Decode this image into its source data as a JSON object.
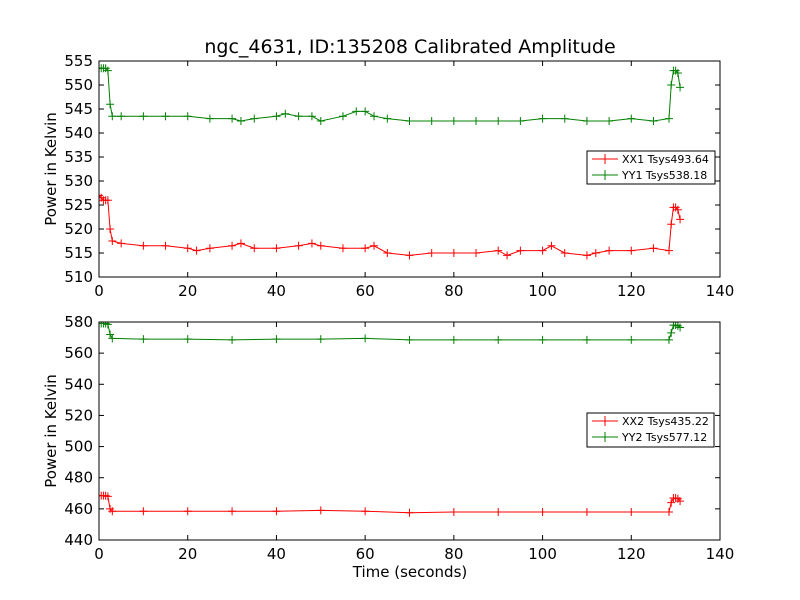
{
  "chart_data": [
    {
      "type": "line",
      "title": "ngc_4631, ID:135208 Calibrated Amplitude",
      "xlabel": "",
      "ylabel": "Power in Kelvin",
      "xlim": [
        0,
        140
      ],
      "ylim": [
        510,
        555
      ],
      "xticks": [
        0,
        20,
        40,
        60,
        80,
        100,
        120,
        140
      ],
      "yticks": [
        510,
        515,
        520,
        525,
        530,
        535,
        540,
        545,
        550,
        555
      ],
      "legend": "center-right",
      "grid": false,
      "series": [
        {
          "name": "XX1 Tsys493.64",
          "color": "#ff0000",
          "x": [
            0,
            0.5,
            1,
            1.5,
            2,
            2.5,
            3,
            5,
            10,
            15,
            20,
            22,
            25,
            30,
            32,
            35,
            40,
            45,
            48,
            50,
            55,
            60,
            62,
            65,
            70,
            75,
            80,
            85,
            90,
            92,
            95,
            100,
            102,
            105,
            110,
            112,
            115,
            120,
            125,
            128.5,
            129,
            129.5,
            130,
            130.5,
            131
          ],
          "y": [
            527,
            526.5,
            526,
            526,
            526,
            520,
            517.5,
            517,
            516.5,
            516.5,
            516,
            515.5,
            516,
            516.5,
            517,
            516,
            516,
            516.5,
            517,
            516.5,
            516,
            516,
            516.5,
            515,
            514.5,
            515,
            515,
            515,
            515.5,
            514.5,
            515.5,
            515.5,
            516.5,
            515,
            514.5,
            515,
            515.5,
            515.5,
            516,
            515.5,
            521,
            524.5,
            524.5,
            524,
            522
          ]
        },
        {
          "name": "YY1 Tsys538.18",
          "color": "#008000",
          "x": [
            0,
            0.5,
            1,
            1.5,
            2,
            2.5,
            3,
            5,
            10,
            15,
            20,
            25,
            30,
            32,
            35,
            40,
            42,
            45,
            48,
            50,
            55,
            58,
            60,
            62,
            65,
            70,
            75,
            80,
            85,
            90,
            95,
            100,
            105,
            110,
            115,
            120,
            125,
            128.5,
            129,
            129.5,
            130,
            130.5,
            131
          ],
          "y": [
            553.5,
            553.5,
            553.5,
            553.5,
            553,
            546,
            543.5,
            543.5,
            543.5,
            543.5,
            543.5,
            543,
            543,
            542.5,
            543,
            543.5,
            544,
            543.5,
            543.5,
            542.5,
            543.5,
            544.5,
            544.5,
            543.5,
            543,
            542.5,
            542.5,
            542.5,
            542.5,
            542.5,
            542.5,
            543,
            543,
            542.5,
            542.5,
            543,
            542.5,
            543,
            550,
            553,
            553,
            552.5,
            549.5
          ]
        }
      ]
    },
    {
      "type": "line",
      "title": "",
      "xlabel": "Time (seconds)",
      "ylabel": "Power in Kelvin",
      "xlim": [
        0,
        140
      ],
      "ylim": [
        440,
        580
      ],
      "xticks": [
        0,
        20,
        40,
        60,
        80,
        100,
        120,
        140
      ],
      "yticks": [
        440,
        460,
        480,
        500,
        520,
        540,
        560,
        580
      ],
      "legend": "center-right",
      "grid": false,
      "series": [
        {
          "name": "XX2 Tsys435.22",
          "color": "#ff0000",
          "x": [
            0,
            0.5,
            1,
            1.5,
            2,
            2.5,
            3,
            10,
            20,
            30,
            40,
            50,
            60,
            70,
            80,
            90,
            100,
            110,
            120,
            128.5,
            129,
            129.5,
            130,
            130.5,
            131
          ],
          "y": [
            468.5,
            468.5,
            468.5,
            468.5,
            468,
            460,
            458.5,
            458.5,
            458.5,
            458.5,
            458.5,
            459,
            458.5,
            457.5,
            458,
            458,
            458,
            458,
            458,
            458,
            464,
            467,
            467,
            466.5,
            465
          ]
        },
        {
          "name": "YY2 Tsys577.12",
          "color": "#008000",
          "x": [
            0,
            0.5,
            1,
            1.5,
            2,
            2.5,
            3,
            10,
            20,
            30,
            40,
            50,
            60,
            70,
            80,
            90,
            100,
            110,
            120,
            128.5,
            129,
            129.5,
            130,
            130.5,
            131
          ],
          "y": [
            579,
            579,
            579,
            579,
            578.5,
            572,
            569.5,
            569,
            569,
            568.5,
            569,
            569,
            569.5,
            568.5,
            568.5,
            568.5,
            568.5,
            568.5,
            568.5,
            568.5,
            573,
            578,
            578,
            577.5,
            576.5
          ]
        }
      ]
    }
  ]
}
